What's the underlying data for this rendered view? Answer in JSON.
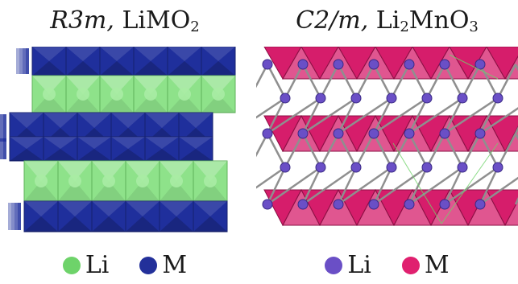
{
  "left": {
    "title": {
      "space_group": "R3m,",
      "formula_main": "LiMO",
      "formula_sub": "2"
    },
    "legend": [
      {
        "symbol": "Li",
        "color": "#6ed36a"
      },
      {
        "symbol": "M",
        "color": "#23309a"
      }
    ]
  },
  "right": {
    "title": {
      "space_group": "C2/m,",
      "f1": "Li",
      "f1_sub": "2",
      "f2": "MnO",
      "f2_sub": "3"
    },
    "legend": [
      {
        "symbol": "Li",
        "color": "#6a4fc6"
      },
      {
        "symbol": "M",
        "color": "#e0206f"
      }
    ]
  },
  "colors": {
    "m_octahedra": "#1f2f9c",
    "li_octahedra": "#8ee28a",
    "mn_octahedra": "#d61d6b",
    "bond": "#8f8f8f"
  }
}
